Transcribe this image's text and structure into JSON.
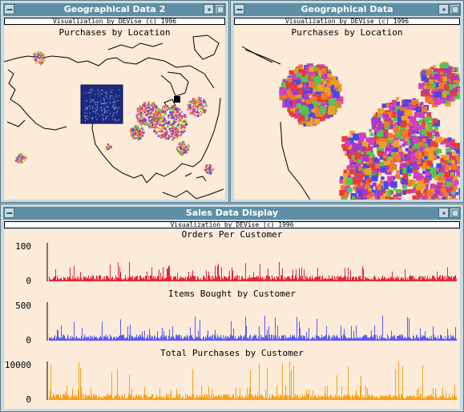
{
  "windows": {
    "geo2": {
      "title": "Geographical Data 2",
      "banner": "Visualization by DEVise (c) 1996",
      "plot_title": "Purchases by Location"
    },
    "geo1": {
      "title": "Geographical Data",
      "banner": "Visualization by DEVise (c) 1996",
      "plot_title": "Purchases by Location"
    },
    "sales": {
      "title": "Sales Data Display",
      "banner": "Visualization by DEVise (c) 1996"
    }
  },
  "colors": {
    "canvas_bg": "#fbebd8",
    "titlebar": "#5e8fa5",
    "orders_bar": "#e8243c",
    "items_bar": "#5a5cf0",
    "total_bar": "#f5a21b",
    "selection_box": "#1b2a80",
    "dot_palette": [
      "#e63c3c",
      "#f0a020",
      "#4848e8",
      "#a838c8",
      "#50c850",
      "#d040c0",
      "#f07828"
    ]
  },
  "chart_data": [
    {
      "type": "bar",
      "title": "Orders Per Customer",
      "y_ticks": [
        "100",
        "0"
      ],
      "ylim": [
        0,
        100
      ],
      "typical_value": 12,
      "max_value": 55,
      "color": "orders_bar"
    },
    {
      "type": "bar",
      "title": "Items Bought by Customer",
      "y_ticks": [
        "500",
        "0"
      ],
      "ylim": [
        0,
        500
      ],
      "typical_value": 60,
      "max_value": 330,
      "color": "items_bar"
    },
    {
      "type": "bar",
      "title": "Total Purchases by Customer",
      "y_ticks": [
        "10000",
        "0"
      ],
      "ylim": [
        0,
        10000
      ],
      "typical_value": 1200,
      "max_value": 10800,
      "color": "total_bar"
    }
  ]
}
